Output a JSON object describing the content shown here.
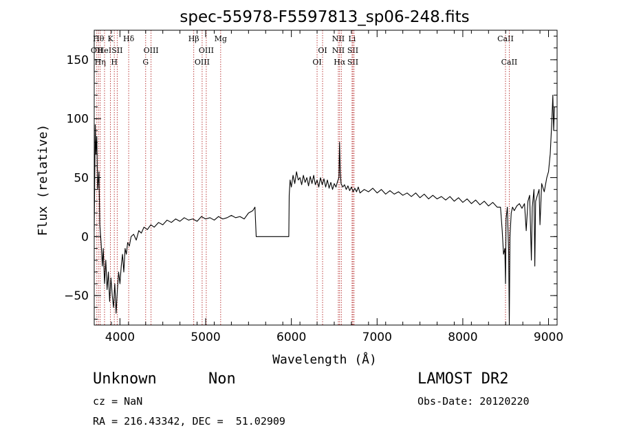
{
  "chart_data": {
    "type": "line",
    "title": "spec-55978-F5597813_sp06-248.fits",
    "xlabel": "Wavelength (Å)",
    "ylabel": "Flux (relative)",
    "xlim": [
      3700,
      9100
    ],
    "ylim": [
      -75,
      175
    ],
    "x_ticks": [
      4000,
      5000,
      6000,
      7000,
      8000,
      9000
    ],
    "y_ticks": [
      -50,
      0,
      50,
      100,
      150
    ],
    "y_tick_labels": [
      "−50",
      "0",
      "50",
      "100",
      "150"
    ],
    "x_minor_step": 200,
    "y_minor_step": 10,
    "series": [
      {
        "values": [
          [
            3700,
            5
          ],
          [
            3712,
            95
          ],
          [
            3720,
            70
          ],
          [
            3730,
            85
          ],
          [
            3740,
            40
          ],
          [
            3755,
            55
          ],
          [
            3765,
            10
          ],
          [
            3780,
            -5
          ],
          [
            3795,
            -25
          ],
          [
            3805,
            -10
          ],
          [
            3820,
            -40
          ],
          [
            3835,
            -20
          ],
          [
            3850,
            -45
          ],
          [
            3865,
            -30
          ],
          [
            3880,
            -55
          ],
          [
            3895,
            -35
          ],
          [
            3910,
            -50
          ],
          [
            3925,
            -60
          ],
          [
            3940,
            -40
          ],
          [
            3955,
            -65
          ],
          [
            3970,
            -45
          ],
          [
            3985,
            -30
          ],
          [
            4000,
            -40
          ],
          [
            4015,
            -25
          ],
          [
            4030,
            -15
          ],
          [
            4045,
            -30
          ],
          [
            4060,
            -10
          ],
          [
            4075,
            -15
          ],
          [
            4090,
            -5
          ],
          [
            4110,
            -8
          ],
          [
            4130,
            0
          ],
          [
            4160,
            2
          ],
          [
            4190,
            -3
          ],
          [
            4220,
            5
          ],
          [
            4250,
            3
          ],
          [
            4280,
            8
          ],
          [
            4320,
            6
          ],
          [
            4360,
            10
          ],
          [
            4400,
            8
          ],
          [
            4450,
            12
          ],
          [
            4500,
            10
          ],
          [
            4550,
            14
          ],
          [
            4600,
            12
          ],
          [
            4650,
            15
          ],
          [
            4700,
            13
          ],
          [
            4750,
            16
          ],
          [
            4800,
            14
          ],
          [
            4850,
            15
          ],
          [
            4900,
            13
          ],
          [
            4950,
            17
          ],
          [
            5000,
            15
          ],
          [
            5050,
            16
          ],
          [
            5100,
            14
          ],
          [
            5150,
            17
          ],
          [
            5200,
            15
          ],
          [
            5250,
            16
          ],
          [
            5300,
            18
          ],
          [
            5350,
            16
          ],
          [
            5400,
            17
          ],
          [
            5450,
            15
          ],
          [
            5500,
            20
          ],
          [
            5550,
            22
          ],
          [
            5575,
            25
          ],
          [
            5590,
            0
          ],
          [
            5800,
            0
          ],
          [
            5970,
            0
          ],
          [
            5975,
            35
          ],
          [
            5985,
            48
          ],
          [
            6000,
            42
          ],
          [
            6020,
            52
          ],
          [
            6040,
            45
          ],
          [
            6060,
            55
          ],
          [
            6080,
            48
          ],
          [
            6100,
            50
          ],
          [
            6120,
            44
          ],
          [
            6140,
            52
          ],
          [
            6160,
            46
          ],
          [
            6180,
            50
          ],
          [
            6200,
            43
          ],
          [
            6220,
            51
          ],
          [
            6240,
            45
          ],
          [
            6260,
            52
          ],
          [
            6280,
            44
          ],
          [
            6300,
            48
          ],
          [
            6320,
            42
          ],
          [
            6340,
            50
          ],
          [
            6360,
            44
          ],
          [
            6380,
            49
          ],
          [
            6400,
            42
          ],
          [
            6420,
            48
          ],
          [
            6440,
            41
          ],
          [
            6460,
            46
          ],
          [
            6480,
            40
          ],
          [
            6500,
            45
          ],
          [
            6520,
            42
          ],
          [
            6540,
            47
          ],
          [
            6555,
            50
          ],
          [
            6562,
            80
          ],
          [
            6570,
            55
          ],
          [
            6580,
            45
          ],
          [
            6600,
            42
          ],
          [
            6620,
            44
          ],
          [
            6640,
            40
          ],
          [
            6660,
            43
          ],
          [
            6680,
            39
          ],
          [
            6700,
            42
          ],
          [
            6720,
            38
          ],
          [
            6740,
            41
          ],
          [
            6760,
            38
          ],
          [
            6780,
            42
          ],
          [
            6800,
            37
          ],
          [
            6850,
            40
          ],
          [
            6900,
            38
          ],
          [
            6950,
            41
          ],
          [
            7000,
            37
          ],
          [
            7050,
            40
          ],
          [
            7100,
            36
          ],
          [
            7150,
            39
          ],
          [
            7200,
            36
          ],
          [
            7250,
            38
          ],
          [
            7300,
            35
          ],
          [
            7350,
            37
          ],
          [
            7400,
            34
          ],
          [
            7450,
            37
          ],
          [
            7500,
            33
          ],
          [
            7550,
            36
          ],
          [
            7600,
            32
          ],
          [
            7650,
            35
          ],
          [
            7700,
            32
          ],
          [
            7750,
            34
          ],
          [
            7800,
            31
          ],
          [
            7850,
            34
          ],
          [
            7900,
            30
          ],
          [
            7950,
            33
          ],
          [
            8000,
            29
          ],
          [
            8050,
            32
          ],
          [
            8100,
            28
          ],
          [
            8150,
            31
          ],
          [
            8200,
            27
          ],
          [
            8250,
            30
          ],
          [
            8300,
            26
          ],
          [
            8350,
            29
          ],
          [
            8400,
            25
          ],
          [
            8440,
            25
          ],
          [
            8460,
            5
          ],
          [
            8475,
            -15
          ],
          [
            8490,
            -10
          ],
          [
            8498,
            -40
          ],
          [
            8505,
            15
          ],
          [
            8520,
            25
          ],
          [
            8535,
            -15
          ],
          [
            8542,
            -75
          ],
          [
            8550,
            0
          ],
          [
            8565,
            20
          ],
          [
            8580,
            25
          ],
          [
            8600,
            22
          ],
          [
            8630,
            26
          ],
          [
            8660,
            28
          ],
          [
            8690,
            24
          ],
          [
            8720,
            28
          ],
          [
            8740,
            5
          ],
          [
            8760,
            30
          ],
          [
            8780,
            35
          ],
          [
            8800,
            -20
          ],
          [
            8810,
            25
          ],
          [
            8830,
            40
          ],
          [
            8840,
            -25
          ],
          [
            8850,
            30
          ],
          [
            8870,
            35
          ],
          [
            8890,
            40
          ],
          [
            8900,
            10
          ],
          [
            8920,
            45
          ],
          [
            8950,
            38
          ],
          [
            8980,
            50
          ],
          [
            9000,
            55
          ],
          [
            9020,
            70
          ],
          [
            9040,
            100
          ],
          [
            9050,
            120
          ],
          [
            9060,
            90
          ],
          [
            9070,
            110
          ]
        ]
      }
    ],
    "reference_lines": [
      {
        "x": 3730,
        "labels": [
          {
            "text": "OII",
            "row": 1
          }
        ]
      },
      {
        "x": 3750,
        "labels": [
          {
            "text": "Hθ",
            "row": 0
          }
        ]
      },
      {
        "x": 3770,
        "labels": [
          {
            "text": "Hη",
            "row": 2
          }
        ]
      },
      {
        "x": 3820,
        "labels": [
          {
            "text": "HeI",
            "row": 1
          }
        ]
      },
      {
        "x": 3889,
        "labels": [
          {
            "text": "K",
            "row": 0
          }
        ]
      },
      {
        "x": 3934,
        "labels": [
          {
            "text": "H",
            "row": 2
          }
        ]
      },
      {
        "x": 3968,
        "labels": [
          {
            "text": "SII",
            "row": 1
          }
        ]
      },
      {
        "x": 4102,
        "labels": [
          {
            "text": "Hδ",
            "row": 0
          }
        ]
      },
      {
        "x": 4300,
        "labels": [
          {
            "text": "G",
            "row": 2
          }
        ]
      },
      {
        "x": 4363,
        "labels": [
          {
            "text": "OIII",
            "row": 1
          }
        ]
      },
      {
        "x": 4861,
        "labels": [
          {
            "text": "Hβ",
            "row": 0
          }
        ]
      },
      {
        "x": 4959,
        "labels": [
          {
            "text": "OIII",
            "row": 2
          }
        ]
      },
      {
        "x": 5007,
        "labels": [
          {
            "text": "OIII",
            "row": 1
          }
        ]
      },
      {
        "x": 5175,
        "labels": [
          {
            "text": "Mg",
            "row": 0
          }
        ]
      },
      {
        "x": 6300,
        "labels": [
          {
            "text": "OI",
            "row": 2
          }
        ]
      },
      {
        "x": 6364,
        "labels": [
          {
            "text": "OI",
            "row": 1
          }
        ]
      },
      {
        "x": 6548,
        "labels": [
          {
            "text": "NII",
            "row": 0
          },
          {
            "text": "NII",
            "row": 1
          }
        ]
      },
      {
        "x": 6563,
        "labels": [
          {
            "text": "Hα",
            "row": 2
          }
        ]
      },
      {
        "x": 6583,
        "labels": []
      },
      {
        "x": 6708,
        "labels": [
          {
            "text": "Li",
            "row": 0
          }
        ]
      },
      {
        "x": 6717,
        "labels": [
          {
            "text": "SII",
            "row": 1
          },
          {
            "text": "SII",
            "row": 2
          }
        ]
      },
      {
        "x": 6731,
        "labels": []
      },
      {
        "x": 8498,
        "labels": [
          {
            "text": "CaII",
            "row": 0
          }
        ]
      },
      {
        "x": 8542,
        "labels": [
          {
            "text": "CaII",
            "row": 2
          }
        ]
      }
    ]
  },
  "info": {
    "class": "Unknown",
    "subclass": "Non",
    "cz": "cz = NaN",
    "radec": "RA = 216.43342, DEC =  51.02909",
    "survey": "LAMOST DR2",
    "obsdate": "Obs-Date: 20120220"
  }
}
